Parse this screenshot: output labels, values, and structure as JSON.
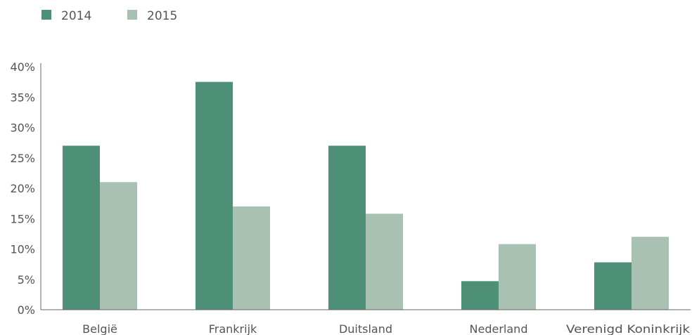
{
  "chart_data": {
    "type": "bar",
    "categories": [
      "België",
      "Frankrijk",
      "Duitsland",
      "Nederland",
      "Verenigd Koninkrijk"
    ],
    "series": [
      {
        "name": "2014",
        "color": "#4e8f78",
        "values": [
          27,
          37.5,
          27,
          4.7,
          7.8
        ]
      },
      {
        "name": "2015",
        "color": "#a9c1b3",
        "values": [
          21,
          17,
          15.8,
          10.8,
          12
        ]
      }
    ],
    "ylim": [
      0,
      40
    ],
    "yticks": [
      "0%",
      "5%",
      "10%",
      "15%",
      "20%",
      "25%",
      "30%",
      "35%",
      "40%"
    ],
    "ytick_values": [
      0,
      5,
      10,
      15,
      20,
      25,
      30,
      35,
      40
    ],
    "grid": false,
    "legend_position": "top-left",
    "title": "",
    "xlabel": "",
    "ylabel": ""
  }
}
